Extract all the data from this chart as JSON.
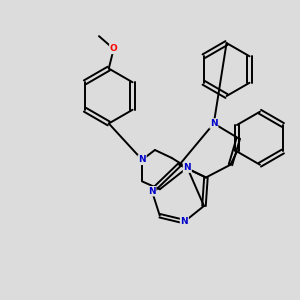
{
  "background_color": "#dcdcdc",
  "bond_color": "#000000",
  "nitrogen_color": "#0000cc",
  "oxygen_color": "#ff0000",
  "line_width": 1.4,
  "dbo": 0.018,
  "figsize": [
    3.0,
    3.0
  ],
  "dpi": 100,
  "xlim": [
    0.0,
    3.0
  ],
  "ylim": [
    0.0,
    3.0
  ]
}
